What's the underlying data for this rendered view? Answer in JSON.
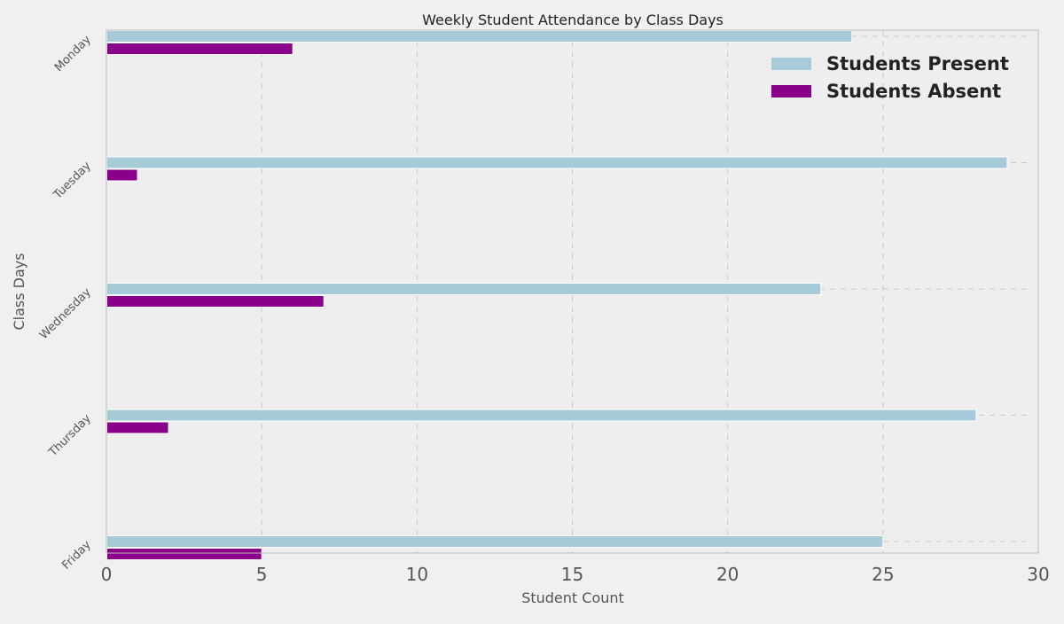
{
  "chart_data": {
    "type": "bar",
    "orientation": "horizontal",
    "title": "Weekly Student Attendance by Class Days",
    "xlabel": "Student Count",
    "ylabel": "Class Days",
    "categories": [
      "Monday",
      "Tuesday",
      "Wednesday",
      "Thursday",
      "Friday"
    ],
    "series": [
      {
        "name": "Students Present",
        "values": [
          24,
          29,
          23,
          28,
          25
        ],
        "color": "#a6cad8"
      },
      {
        "name": "Students Absent",
        "values": [
          6,
          1,
          7,
          2,
          5
        ],
        "color": "#8b008b"
      }
    ],
    "xlim": [
      0,
      30
    ],
    "xticks": [
      0,
      5,
      10,
      15,
      20,
      25,
      30
    ],
    "grid": true,
    "legend_position": "top-right"
  },
  "colors": {
    "page_background": "#f0f0f0",
    "plot_background": "#eeeeee",
    "grid": "#c8c8c8",
    "axis_frame": "#bcbcbc"
  }
}
